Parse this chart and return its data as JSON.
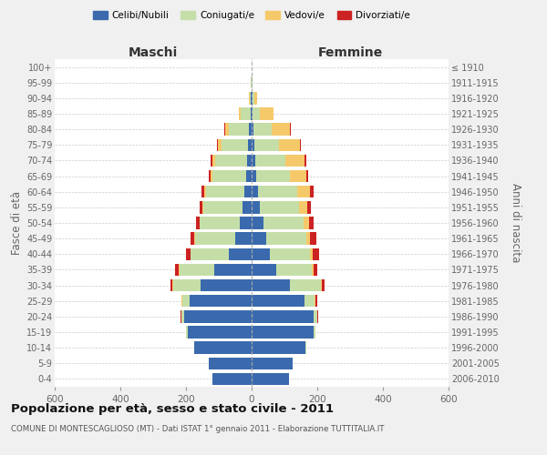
{
  "age_groups": [
    "0-4",
    "5-9",
    "10-14",
    "15-19",
    "20-24",
    "25-29",
    "30-34",
    "35-39",
    "40-44",
    "45-49",
    "50-54",
    "55-59",
    "60-64",
    "65-69",
    "70-74",
    "75-79",
    "80-84",
    "85-89",
    "90-94",
    "95-99",
    "100+"
  ],
  "birth_years": [
    "2006-2010",
    "2001-2005",
    "1996-2000",
    "1991-1995",
    "1986-1990",
    "1981-1985",
    "1976-1980",
    "1971-1975",
    "1966-1970",
    "1961-1965",
    "1956-1960",
    "1951-1955",
    "1946-1950",
    "1941-1945",
    "1936-1940",
    "1931-1935",
    "1926-1930",
    "1921-1925",
    "1916-1920",
    "1911-1915",
    "≤ 1910"
  ],
  "maschi": {
    "celibi": [
      120,
      130,
      175,
      195,
      205,
      190,
      155,
      115,
      70,
      50,
      35,
      28,
      22,
      18,
      14,
      10,
      8,
      4,
      2,
      1,
      1
    ],
    "coniugati": [
      0,
      0,
      1,
      4,
      10,
      22,
      85,
      105,
      115,
      122,
      122,
      118,
      118,
      102,
      98,
      82,
      62,
      28,
      4,
      2,
      0
    ],
    "vedovi": [
      0,
      0,
      0,
      0,
      0,
      1,
      2,
      2,
      2,
      2,
      2,
      3,
      5,
      5,
      8,
      12,
      10,
      8,
      2,
      0,
      0
    ],
    "divorziati": [
      0,
      0,
      0,
      0,
      1,
      2,
      6,
      10,
      12,
      12,
      10,
      8,
      8,
      5,
      5,
      2,
      2,
      0,
      0,
      0,
      0
    ]
  },
  "femmine": {
    "nubili": [
      115,
      125,
      165,
      190,
      188,
      162,
      118,
      75,
      55,
      45,
      35,
      26,
      20,
      14,
      10,
      8,
      6,
      4,
      2,
      1,
      1
    ],
    "coniugate": [
      0,
      0,
      1,
      4,
      12,
      30,
      92,
      108,
      122,
      122,
      122,
      118,
      118,
      102,
      92,
      75,
      55,
      22,
      5,
      1,
      0
    ],
    "vedove": [
      0,
      0,
      0,
      0,
      1,
      2,
      3,
      5,
      8,
      12,
      18,
      25,
      40,
      50,
      60,
      65,
      55,
      40,
      10,
      1,
      0
    ],
    "divorziate": [
      0,
      0,
      0,
      0,
      2,
      5,
      10,
      12,
      20,
      18,
      15,
      12,
      10,
      5,
      5,
      3,
      3,
      2,
      0,
      0,
      0
    ]
  },
  "colors": {
    "celibi_nubili": "#3a6aad",
    "coniugati": "#c5dea8",
    "vedovi": "#f5c96a",
    "divorziati": "#cc2222"
  },
  "xlim": 600,
  "title": "Popolazione per età, sesso e stato civile - 2011",
  "subtitle": "COMUNE DI MONTESCAGLIOSO (MT) - Dati ISTAT 1° gennaio 2011 - Elaborazione TUTTITALIA.IT",
  "ylabel_left": "Fasce di età",
  "ylabel_right": "Anni di nascita",
  "xlabel_left": "Maschi",
  "xlabel_right": "Femmine",
  "legend_labels": [
    "Celibi/Nubili",
    "Coniugati/e",
    "Vedovi/e",
    "Divorziati/e"
  ],
  "bg_color": "#f0f0f0",
  "plot_bg": "#ffffff"
}
